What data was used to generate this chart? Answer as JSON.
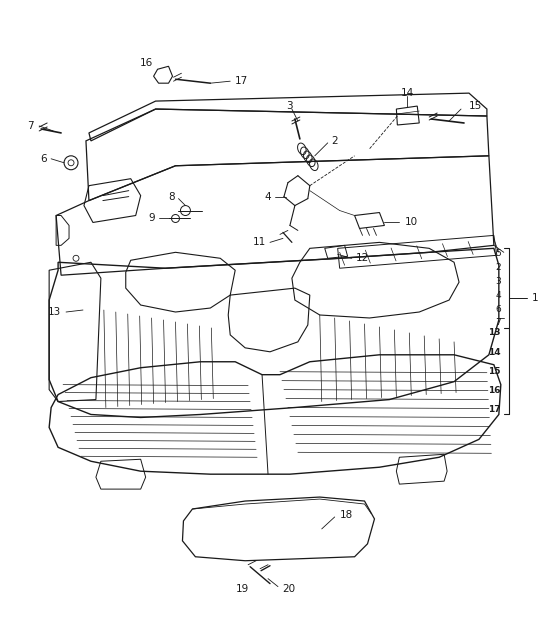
{
  "bg_color": "#ffffff",
  "line_color": "#1a1a1a",
  "fig_width": 5.45,
  "fig_height": 6.28,
  "dpi": 100
}
